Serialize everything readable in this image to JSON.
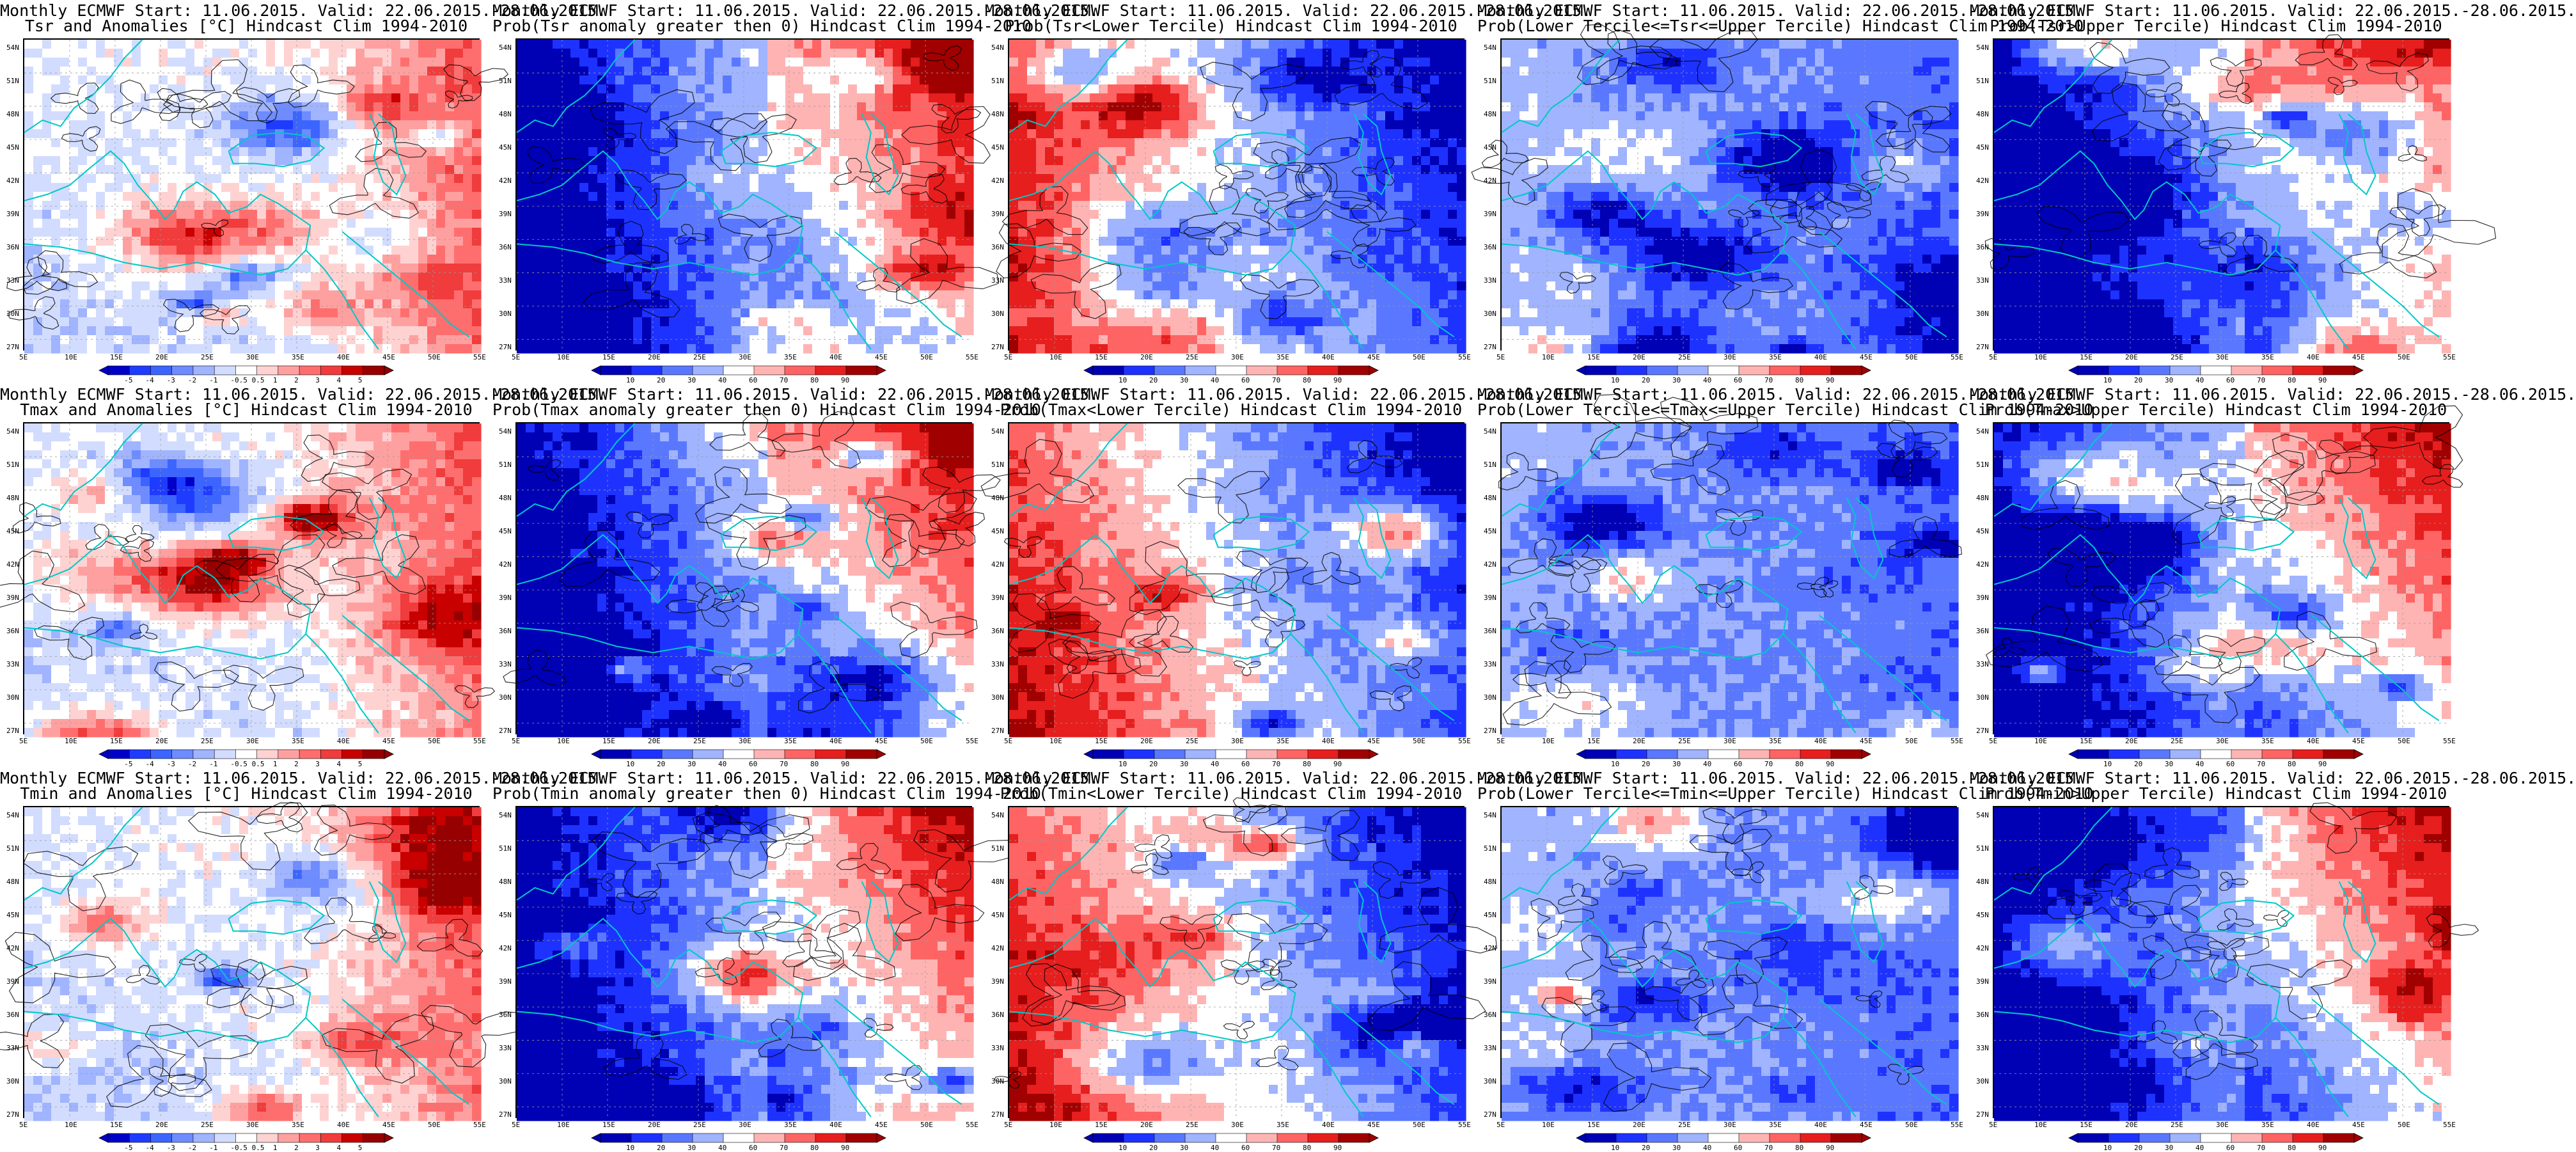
{
  "panels": [
    {
      "title1": "Monthly ECMWF Start: 11.06.2015. Valid: 22.06.2015.-28.06.2015.",
      "title2": "Tsr and Anomalies [°C] Hindcast Clim 1994-2010",
      "kind": "anomaly",
      "seed": 11
    },
    {
      "title1": "Monthly ECMWF Start: 11.06.2015. Valid: 22.06.2015.-28.06.2015.",
      "title2": "Prob(Tsr anomaly greater then 0) Hindcast Clim 1994-2010",
      "kind": "prob_warm",
      "seed": 12
    },
    {
      "title1": "Monthly ECMWF Start: 11.06.2015. Valid: 22.06.2015.-28.06.2015.",
      "title2": "Prob(Tsr<Lower Tercile) Hindcast Clim 1994-2010",
      "kind": "prob_cold",
      "seed": 13
    },
    {
      "title1": "Monthly ECMWF Start: 11.06.2015. Valid: 22.06.2015.-28.06.2015.",
      "title2": "Prob(Lower Tercile<=Tsr<=Upper Tercile) Hindcast Clim 1994-2010",
      "kind": "prob_mid",
      "seed": 14
    },
    {
      "title1": "Monthly ECMWF Start: 11.06.2015. Valid: 22.06.2015.-28.06.2015.",
      "title2": "Prob(Tsr>Upper Tercile) Hindcast Clim 1994-2010",
      "kind": "prob_warm",
      "seed": 15
    },
    {
      "title1": "Monthly ECMWF Start: 11.06.2015. Valid: 22.06.2015.-28.06.2015.",
      "title2": "Tmax and Anomalies [°C] Hindcast Clim 1994-2010",
      "kind": "anomaly",
      "seed": 21
    },
    {
      "title1": "Monthly ECMWF Start: 11.06.2015. Valid: 22.06.2015.-28.06.2015.",
      "title2": "Prob(Tmax anomaly greater then 0) Hindcast Clim 1994-2010",
      "kind": "prob_warm",
      "seed": 22
    },
    {
      "title1": "Monthly ECMWF Start: 11.06.2015. Valid: 22.06.2015.-28.06.2015.",
      "title2": "Prob(Tmax<Lower Tercile) Hindcast Clim 1994-2010",
      "kind": "prob_cold",
      "seed": 23
    },
    {
      "title1": "Monthly ECMWF Start: 11.06.2015. Valid: 22.06.2015.-28.06.2015.",
      "title2": "Prob(Lower Tercile<=Tmax<=Upper Tercile) Hindcast Clim 1994-2010",
      "kind": "prob_mid",
      "seed": 24
    },
    {
      "title1": "Monthly ECMWF Start: 11.06.2015. Valid: 22.06.2015.-28.06.2015.",
      "title2": "Prob(Tmax>Upper Tercile) Hindcast Clim 1994-2010",
      "kind": "prob_warm",
      "seed": 25
    },
    {
      "title1": "Monthly ECMWF Start: 11.06.2015. Valid: 22.06.2015.-28.06.2015.",
      "title2": "Tmin and Anomalies [°C] Hindcast Clim 1994-2010",
      "kind": "anomaly",
      "seed": 31
    },
    {
      "title1": "Monthly ECMWF Start: 11.06.2015. Valid: 22.06.2015.-28.06.2015.",
      "title2": "Prob(Tmin anomaly greater then 0) Hindcast Clim 1994-2010",
      "kind": "prob_warm",
      "seed": 32
    },
    {
      "title1": "Monthly ECMWF Start: 11.06.2015. Valid: 22.06.2015.-28.06.2015.",
      "title2": "Prob(Tmin<Lower Tercile) Hindcast Clim 1994-2010",
      "kind": "prob_cold",
      "seed": 33
    },
    {
      "title1": "Monthly ECMWF Start: 11.06.2015. Valid: 22.06.2015.-28.06.2015.",
      "title2": "Prob(Lower Tercile<=Tmin<=Upper Tercile) Hindcast Clim 1994-2010",
      "kind": "prob_mid",
      "seed": 34
    },
    {
      "title1": "Monthly ECMWF Start: 11.06.2015. Valid: 22.06.2015.-28.06.2015.",
      "title2": "Prob(Tmin>Upper Tercile) Hindcast Clim 1994-2010",
      "kind": "prob_warm",
      "seed": 35
    }
  ],
  "axes": {
    "lat_labels": [
      "54N",
      "51N",
      "48N",
      "45N",
      "42N",
      "39N",
      "36N",
      "33N",
      "30N",
      "27N"
    ],
    "lon_labels": [
      "5E",
      "10E",
      "15E",
      "20E",
      "25E",
      "30E",
      "35E",
      "40E",
      "45E",
      "50E",
      "55E"
    ]
  },
  "colorbars": {
    "anomaly": {
      "labels": [
        "-5",
        "-4",
        "-3",
        "-2",
        "-1",
        "-0.5",
        "0.5",
        "1",
        "2",
        "3",
        "4",
        "5"
      ],
      "colors": [
        "#0000c8",
        "#1e3cff",
        "#3c64ff",
        "#6e8cff",
        "#a0b4ff",
        "#d2dcff",
        "#ffffff",
        "#ffd2d2",
        "#ffa0a0",
        "#ff6e6e",
        "#f03c3c",
        "#c80000",
        "#960000"
      ]
    },
    "probability": {
      "labels": [
        "10",
        "20",
        "30",
        "40",
        "60",
        "70",
        "80",
        "90"
      ],
      "colors": [
        "#0000b4",
        "#1e32ff",
        "#5a78ff",
        "#a0b4ff",
        "#ffffff",
        "#ffb4b4",
        "#ff6464",
        "#e61e1e",
        "#a00000"
      ]
    }
  },
  "map_colors": {
    "coast": "#00c8c8",
    "contour": "#000000"
  }
}
